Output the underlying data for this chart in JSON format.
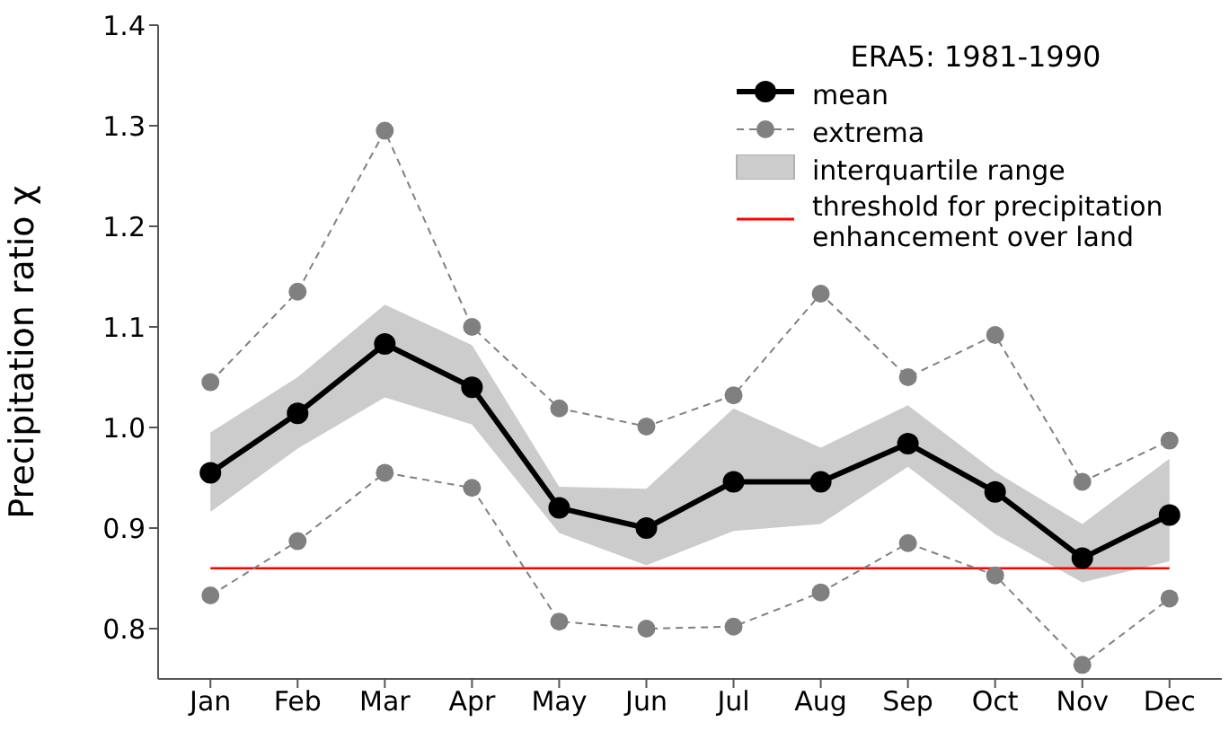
{
  "chart_data": {
    "type": "line",
    "ylabel": "Precipitation ratio χ",
    "legend_title": "ERA5: 1981-1990",
    "categories": [
      "Jan",
      "Feb",
      "Mar",
      "Apr",
      "May",
      "Jun",
      "Jul",
      "Aug",
      "Sep",
      "Oct",
      "Nov",
      "Dec"
    ],
    "series": [
      {
        "name": "mean",
        "color": "#000000",
        "marker": "circle",
        "values": [
          0.955,
          1.014,
          1.083,
          1.04,
          0.92,
          0.9,
          0.946,
          0.946,
          0.984,
          0.936,
          0.87,
          0.913
        ],
        "lower": [
          0.916,
          0.979,
          1.03,
          1.003,
          0.895,
          0.863,
          0.897,
          0.904,
          0.961,
          0.894,
          0.846,
          0.867
        ],
        "upper": [
          0.995,
          1.05,
          1.122,
          1.082,
          0.941,
          0.939,
          1.019,
          0.98,
          1.022,
          0.956,
          0.904,
          0.969
        ]
      },
      {
        "name": "extrema",
        "color": "#808080",
        "marker": "circle",
        "line_style": "dashed",
        "values": [
          1.045,
          1.135,
          1.295,
          1.1,
          1.019,
          1.001,
          1.032,
          1.133,
          1.05,
          1.092,
          0.946,
          0.987
        ]
      },
      {
        "color": "#808080",
        "marker": "circle",
        "line_style": "dashed",
        "values": [
          0.833,
          0.887,
          0.955,
          0.94,
          0.807,
          0.8,
          0.802,
          0.836,
          0.885,
          0.853,
          0.764,
          0.83
        ]
      }
    ],
    "annotations": [
      "interquartile range"
    ],
    "ref_lines": [
      {
        "axis": "y",
        "value": 0.86,
        "label": "threshold for precipitation enhancement over land",
        "color": "#ff0000"
      }
    ],
    "ylim": [
      0.75,
      1.4
    ],
    "yticks": [
      0.8,
      0.9,
      {
        "value": 1,
        "label": "1.0"
      },
      1.1,
      1.2,
      1.3,
      1.4
    ],
    "grid": false,
    "legend": "top right"
  }
}
